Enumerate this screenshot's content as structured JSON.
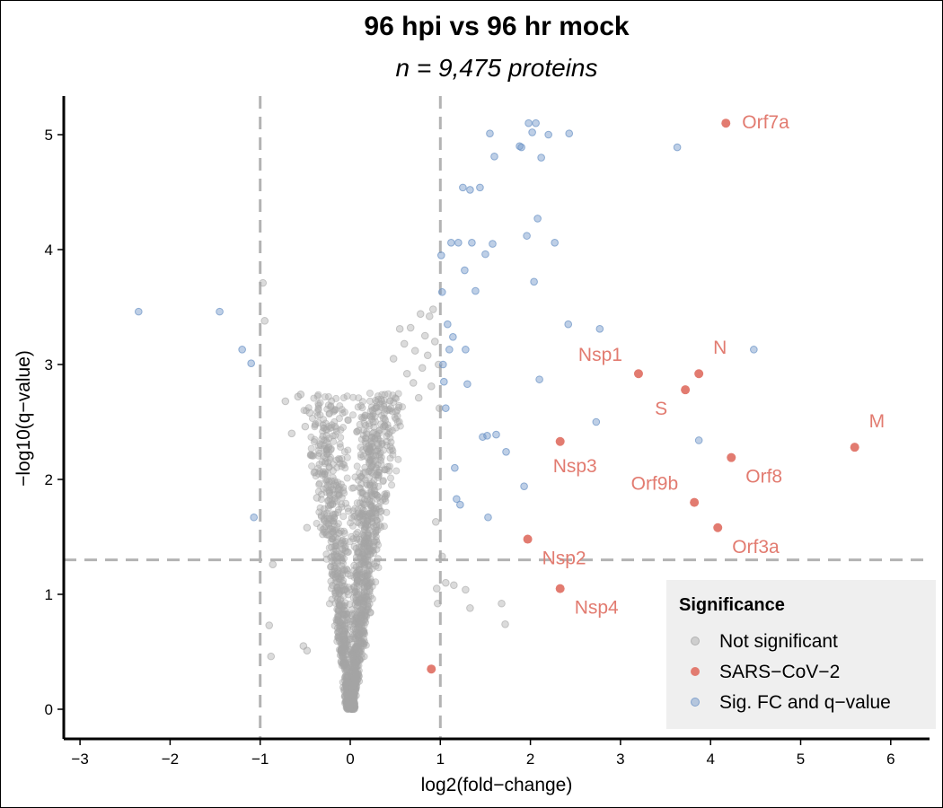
{
  "chart_data": {
    "type": "scatter",
    "title": "96 hpi vs 96 hr mock",
    "subtitle": "n = 9,475 proteins",
    "xlabel": "log2(fold−change)",
    "ylabel": "−log10(q−value)",
    "xlim": [
      -3.2,
      6.4
    ],
    "ylim": [
      -0.25,
      5.35
    ],
    "x_ticks": [
      -3,
      -2,
      -1,
      0,
      1,
      2,
      3,
      4,
      5,
      6
    ],
    "y_ticks": [
      0,
      1,
      2,
      3,
      4,
      5
    ],
    "thresholds": {
      "fc": [
        -1,
        1
      ],
      "q": 1.3
    },
    "grid": false,
    "colors": {
      "not_significant": "#a6a6a6",
      "sars": "#e27b70",
      "sig": "#6f95c7",
      "threshold_line": "#b3b3b3",
      "legend_bg": "#efefef"
    },
    "legend": {
      "title": "Significance",
      "position": "bottom-right",
      "items": [
        {
          "key": "not_significant",
          "label": "Not significant"
        },
        {
          "key": "sars",
          "label": "SARS−CoV−2"
        },
        {
          "key": "sig",
          "label": "Sig. FC and q−value"
        }
      ]
    },
    "series": [
      {
        "name": "SARS−CoV−2",
        "key": "sars",
        "points": [
          {
            "label": "Orf7a",
            "x": 4.17,
            "y": 5.1,
            "anchor": "e"
          },
          {
            "label": "Nsp1",
            "x": 3.2,
            "y": 2.92,
            "anchor": "nw"
          },
          {
            "label": "N",
            "x": 3.87,
            "y": 2.92,
            "anchor": "ne"
          },
          {
            "label": "S",
            "x": 3.72,
            "y": 2.78,
            "anchor": "sw"
          },
          {
            "label": "M",
            "x": 5.6,
            "y": 2.28,
            "anchor": "ne"
          },
          {
            "label": "Nsp3",
            "x": 2.33,
            "y": 2.33,
            "anchor": "s"
          },
          {
            "label": "Orf9b",
            "x": 3.82,
            "y": 1.8,
            "anchor": "nw"
          },
          {
            "label": "Orf8",
            "x": 4.23,
            "y": 2.19,
            "anchor": "se"
          },
          {
            "label": "Orf3a",
            "x": 4.08,
            "y": 1.58,
            "anchor": "se"
          },
          {
            "label": "Nsp2",
            "x": 1.97,
            "y": 1.48,
            "anchor": "se"
          },
          {
            "label": "Nsp4",
            "x": 2.33,
            "y": 1.05,
            "anchor": "se"
          },
          {
            "label": "",
            "x": 0.9,
            "y": 0.35,
            "anchor": "none"
          }
        ]
      },
      {
        "name": "Sig. FC and q−value",
        "key": "sig",
        "points": [
          [
            -2.35,
            3.46
          ],
          [
            -1.45,
            3.46
          ],
          [
            -1.2,
            3.13
          ],
          [
            -1.1,
            3.01
          ],
          [
            -1.07,
            1.67
          ],
          [
            1.01,
            3.95
          ],
          [
            1.02,
            3.63
          ],
          [
            1.03,
            3.0
          ],
          [
            1.04,
            2.85
          ],
          [
            1.06,
            2.62
          ],
          [
            1.08,
            3.35
          ],
          [
            1.1,
            3.13
          ],
          [
            1.12,
            4.06
          ],
          [
            1.14,
            3.24
          ],
          [
            1.16,
            2.1
          ],
          [
            1.18,
            1.83
          ],
          [
            1.2,
            4.06
          ],
          [
            1.22,
            1.78
          ],
          [
            1.25,
            4.54
          ],
          [
            1.27,
            3.82
          ],
          [
            1.28,
            3.13
          ],
          [
            1.3,
            2.83
          ],
          [
            1.33,
            4.52
          ],
          [
            1.35,
            4.06
          ],
          [
            1.39,
            3.64
          ],
          [
            1.44,
            4.54
          ],
          [
            1.47,
            2.37
          ],
          [
            1.5,
            3.96
          ],
          [
            1.52,
            2.38
          ],
          [
            1.53,
            1.67
          ],
          [
            1.55,
            5.01
          ],
          [
            1.58,
            4.05
          ],
          [
            1.6,
            4.81
          ],
          [
            1.62,
            2.39
          ],
          [
            1.73,
            2.24
          ],
          [
            1.88,
            4.9
          ],
          [
            1.9,
            4.89
          ],
          [
            1.93,
            1.94
          ],
          [
            1.96,
            4.12
          ],
          [
            1.98,
            5.1
          ],
          [
            2.02,
            5.02
          ],
          [
            2.04,
            3.72
          ],
          [
            2.06,
            5.1
          ],
          [
            2.08,
            4.27
          ],
          [
            2.1,
            2.87
          ],
          [
            2.12,
            4.8
          ],
          [
            2.2,
            5.0
          ],
          [
            2.27,
            4.06
          ],
          [
            2.43,
            5.01
          ],
          [
            2.42,
            3.35
          ],
          [
            2.73,
            2.5
          ],
          [
            2.77,
            3.31
          ],
          [
            3.63,
            4.89
          ],
          [
            3.87,
            2.34
          ],
          [
            4.48,
            3.13
          ]
        ]
      },
      {
        "name": "Not significant",
        "key": "not_significant",
        "points": [
          [
            -0.97,
            3.71
          ],
          [
            -0.95,
            3.38
          ],
          [
            -0.9,
            0.73
          ],
          [
            -0.88,
            0.46
          ],
          [
            -0.86,
            1.26
          ],
          [
            -0.72,
            2.68
          ],
          [
            -0.65,
            2.4
          ],
          [
            -0.58,
            2.72
          ],
          [
            -0.55,
            2.74
          ],
          [
            -0.52,
            0.55
          ],
          [
            -0.5,
            2.46
          ],
          [
            -0.48,
            0.51
          ],
          [
            -0.48,
            1.58
          ],
          [
            -0.45,
            2.58
          ],
          [
            -0.43,
            2.21
          ],
          [
            -0.4,
            2.06
          ],
          [
            -0.37,
            1.84
          ],
          [
            0.45,
            2.62
          ],
          [
            0.48,
            3.05
          ],
          [
            0.55,
            3.31
          ],
          [
            0.6,
            3.18
          ],
          [
            0.63,
            2.92
          ],
          [
            0.67,
            3.32
          ],
          [
            0.7,
            2.84
          ],
          [
            0.72,
            3.12
          ],
          [
            0.76,
            2.71
          ],
          [
            0.78,
            3.44
          ],
          [
            0.8,
            2.97
          ],
          [
            0.83,
            3.25
          ],
          [
            0.86,
            3.08
          ],
          [
            0.88,
            3.42
          ],
          [
            0.9,
            2.81
          ],
          [
            0.92,
            3.48
          ],
          [
            0.94,
            3.2
          ],
          [
            0.95,
            1.63
          ],
          [
            0.96,
            1.05
          ],
          [
            0.97,
            0.92
          ],
          [
            0.98,
            3.0
          ],
          [
            0.99,
            2.62
          ],
          [
            1.02,
            1.33
          ],
          [
            1.06,
            1.1
          ],
          [
            1.15,
            1.08
          ],
          [
            1.28,
            1.04
          ],
          [
            1.33,
            0.88
          ],
          [
            1.68,
            0.92
          ],
          [
            1.72,
            0.74
          ]
        ]
      }
    ]
  }
}
